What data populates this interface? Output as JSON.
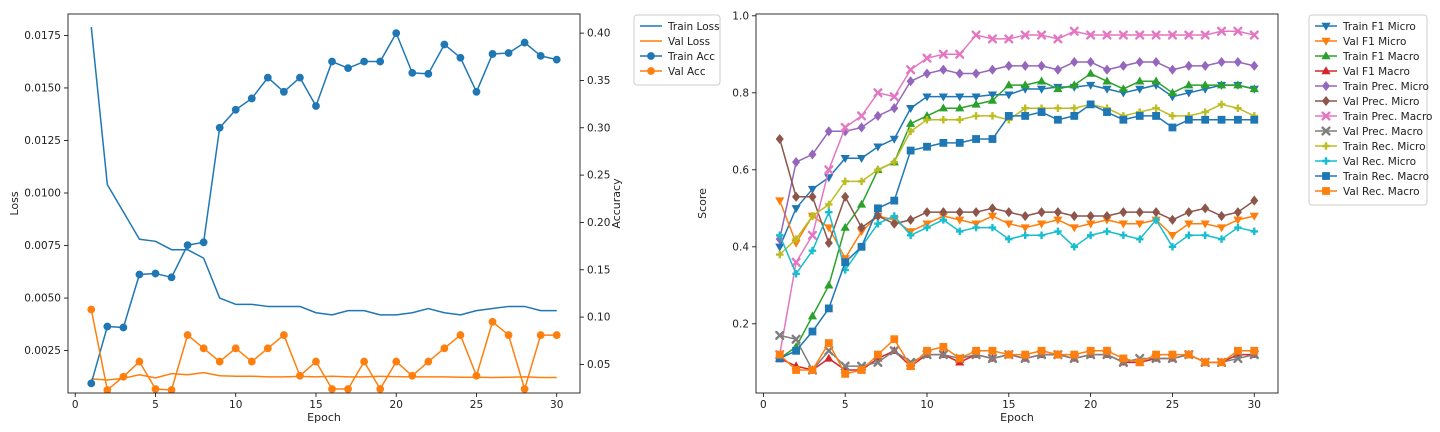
{
  "chart_data": [
    {
      "type": "line",
      "xlabel": "Epoch",
      "ylabel": "Loss",
      "y2label": "Accuracy",
      "xlim": [
        -0.45,
        31.45
      ],
      "ylim": [
        0.00048,
        0.01852
      ],
      "y2lim": [
        0.0198,
        0.4202
      ],
      "xticks": [
        0,
        5,
        10,
        15,
        20,
        25,
        30
      ],
      "yticks": [
        0.0025,
        0.005,
        0.0075,
        0.01,
        0.0125,
        0.015,
        0.0175
      ],
      "ytick_labels": [
        "0.0025",
        "0.0050",
        "0.0075",
        "0.0100",
        "0.0125",
        "0.0150",
        "0.0175"
      ],
      "y2ticks": [
        0.05,
        0.1,
        0.15,
        0.2,
        0.25,
        0.3,
        0.35,
        0.4
      ],
      "y2tick_labels": [
        "0.05",
        "0.10",
        "0.15",
        "0.20",
        "0.25",
        "0.30",
        "0.35",
        "0.40"
      ],
      "legend_position": "outside-right",
      "x": [
        1,
        2,
        3,
        4,
        5,
        6,
        7,
        8,
        9,
        10,
        11,
        12,
        13,
        14,
        15,
        16,
        17,
        18,
        19,
        20,
        21,
        22,
        23,
        24,
        25,
        26,
        27,
        28,
        29,
        30
      ],
      "series": [
        {
          "name": "Train Loss",
          "axis": "left",
          "color": "#1f77b4",
          "marker": "none",
          "values": [
            0.0179,
            0.0104,
            0.0091,
            0.0078,
            0.0077,
            0.0073,
            0.0073,
            0.0069,
            0.005,
            0.0047,
            0.0047,
            0.0046,
            0.0046,
            0.0046,
            0.0043,
            0.0042,
            0.0044,
            0.0044,
            0.0042,
            0.0042,
            0.0043,
            0.0045,
            0.0043,
            0.0042,
            0.0044,
            0.0045,
            0.0046,
            0.0046,
            0.0044,
            0.0044
          ]
        },
        {
          "name": "Val Loss",
          "axis": "left",
          "color": "#ff7f0e",
          "marker": "none",
          "values": [
            0.00115,
            0.0011,
            0.00118,
            0.00135,
            0.0012,
            0.0014,
            0.00135,
            0.00145,
            0.0013,
            0.00128,
            0.00128,
            0.00125,
            0.00125,
            0.00127,
            0.00125,
            0.00128,
            0.00125,
            0.00125,
            0.00127,
            0.00126,
            0.00125,
            0.00125,
            0.00125,
            0.00123,
            0.00123,
            0.00122,
            0.00123,
            0.00125,
            0.00122,
            0.00122
          ]
        },
        {
          "name": "Train Acc",
          "axis": "right",
          "color": "#1f77b4",
          "marker": "circle",
          "values": [
            0.03,
            0.09,
            0.089,
            0.145,
            0.146,
            0.142,
            0.176,
            0.179,
            0.3,
            0.319,
            0.331,
            0.353,
            0.338,
            0.353,
            0.323,
            0.37,
            0.363,
            0.37,
            0.37,
            0.4,
            0.358,
            0.357,
            0.388,
            0.374,
            0.338,
            0.378,
            0.379,
            0.39,
            0.376,
            0.372
          ]
        },
        {
          "name": "Val Acc",
          "axis": "right",
          "color": "#ff7f0e",
          "marker": "circle",
          "values": [
            0.108,
            0.023,
            0.037,
            0.053,
            0.024,
            0.023,
            0.081,
            0.067,
            0.053,
            0.067,
            0.053,
            0.067,
            0.081,
            0.038,
            0.053,
            0.024,
            0.024,
            0.053,
            0.024,
            0.053,
            0.038,
            0.053,
            0.067,
            0.081,
            0.038,
            0.095,
            0.081,
            0.024,
            0.081,
            0.081
          ]
        }
      ]
    },
    {
      "type": "line",
      "xlabel": "Epoch",
      "ylabel": "Score",
      "xlim": [
        -0.45,
        31.45
      ],
      "ylim": [
        0.0203,
        1.0047
      ],
      "xticks": [
        0,
        5,
        10,
        15,
        20,
        25,
        30
      ],
      "yticks": [
        0.2,
        0.4,
        0.6,
        0.8,
        1.0
      ],
      "ytick_labels": [
        "0.2",
        "0.4",
        "0.6",
        "0.8",
        "1.0"
      ],
      "legend_position": "outside-right",
      "x": [
        1,
        2,
        3,
        4,
        5,
        6,
        7,
        8,
        9,
        10,
        11,
        12,
        13,
        14,
        15,
        16,
        17,
        18,
        19,
        20,
        21,
        22,
        23,
        24,
        25,
        26,
        27,
        28,
        29,
        30
      ],
      "series": [
        {
          "name": "Train F1 Micro",
          "color": "#1f77b4",
          "marker": "tri_down",
          "values": [
            0.4,
            0.5,
            0.55,
            0.58,
            0.63,
            0.63,
            0.66,
            0.68,
            0.76,
            0.79,
            0.79,
            0.79,
            0.79,
            0.795,
            0.795,
            0.81,
            0.81,
            0.815,
            0.815,
            0.82,
            0.81,
            0.8,
            0.81,
            0.82,
            0.79,
            0.8,
            0.81,
            0.82,
            0.82,
            0.81
          ]
        },
        {
          "name": "Val F1 Micro",
          "color": "#ff7f0e",
          "marker": "tri_down",
          "values": [
            0.52,
            0.41,
            0.48,
            0.45,
            0.37,
            0.44,
            0.48,
            0.47,
            0.44,
            0.46,
            0.48,
            0.47,
            0.46,
            0.48,
            0.46,
            0.45,
            0.46,
            0.47,
            0.45,
            0.46,
            0.47,
            0.46,
            0.46,
            0.47,
            0.43,
            0.46,
            0.46,
            0.45,
            0.47,
            0.48
          ]
        },
        {
          "name": "Train F1 Macro",
          "color": "#2ca02c",
          "marker": "tri_up",
          "values": [
            0.11,
            0.14,
            0.22,
            0.3,
            0.45,
            0.51,
            0.6,
            0.62,
            0.72,
            0.74,
            0.76,
            0.76,
            0.77,
            0.78,
            0.82,
            0.82,
            0.83,
            0.81,
            0.82,
            0.85,
            0.83,
            0.81,
            0.83,
            0.83,
            0.8,
            0.82,
            0.82,
            0.82,
            0.82,
            0.81
          ]
        },
        {
          "name": "Val F1 Macro",
          "color": "#d62728",
          "marker": "tri_up",
          "values": [
            0.11,
            0.09,
            0.08,
            0.11,
            0.08,
            0.08,
            0.11,
            0.13,
            0.09,
            0.12,
            0.12,
            0.1,
            0.12,
            0.11,
            0.12,
            0.11,
            0.12,
            0.12,
            0.11,
            0.12,
            0.12,
            0.1,
            0.1,
            0.11,
            0.11,
            0.12,
            0.1,
            0.1,
            0.12,
            0.12
          ]
        },
        {
          "name": "Train Prec. Micro",
          "color": "#9467bd",
          "marker": "diamond",
          "values": [
            0.42,
            0.62,
            0.64,
            0.7,
            0.7,
            0.71,
            0.74,
            0.76,
            0.83,
            0.85,
            0.86,
            0.85,
            0.85,
            0.86,
            0.87,
            0.87,
            0.87,
            0.86,
            0.88,
            0.88,
            0.86,
            0.87,
            0.88,
            0.88,
            0.86,
            0.87,
            0.87,
            0.88,
            0.88,
            0.87
          ]
        },
        {
          "name": "Val Prec. Micro",
          "color": "#8c564b",
          "marker": "diamond",
          "values": [
            0.68,
            0.53,
            0.53,
            0.41,
            0.53,
            0.45,
            0.48,
            0.46,
            0.47,
            0.49,
            0.49,
            0.49,
            0.49,
            0.5,
            0.49,
            0.48,
            0.49,
            0.49,
            0.48,
            0.48,
            0.48,
            0.49,
            0.49,
            0.49,
            0.47,
            0.49,
            0.5,
            0.48,
            0.49,
            0.52
          ]
        },
        {
          "name": "Train Prec. Macro",
          "color": "#e377c2",
          "marker": "x",
          "values": [
            0.12,
            0.36,
            0.43,
            0.6,
            0.71,
            0.74,
            0.8,
            0.79,
            0.86,
            0.89,
            0.9,
            0.9,
            0.95,
            0.94,
            0.94,
            0.95,
            0.95,
            0.94,
            0.96,
            0.95,
            0.95,
            0.95,
            0.95,
            0.95,
            0.95,
            0.95,
            0.95,
            0.96,
            0.96,
            0.95
          ]
        },
        {
          "name": "Val Prec. Macro",
          "color": "#7f7f7f",
          "marker": "x",
          "values": [
            0.17,
            0.16,
            0.08,
            0.13,
            0.09,
            0.09,
            0.1,
            0.13,
            0.1,
            0.12,
            0.12,
            0.11,
            0.12,
            0.11,
            0.12,
            0.11,
            0.12,
            0.12,
            0.11,
            0.12,
            0.12,
            0.1,
            0.11,
            0.11,
            0.11,
            0.12,
            0.1,
            0.1,
            0.11,
            0.12
          ]
        },
        {
          "name": "Train Rec. Micro",
          "color": "#bcbd22",
          "marker": "plus",
          "values": [
            0.38,
            0.42,
            0.48,
            0.51,
            0.57,
            0.57,
            0.6,
            0.62,
            0.7,
            0.73,
            0.73,
            0.73,
            0.74,
            0.74,
            0.73,
            0.76,
            0.76,
            0.76,
            0.76,
            0.77,
            0.76,
            0.74,
            0.75,
            0.76,
            0.74,
            0.74,
            0.75,
            0.77,
            0.76,
            0.74
          ]
        },
        {
          "name": "Val Rec. Micro",
          "color": "#17becf",
          "marker": "plus",
          "values": [
            0.43,
            0.33,
            0.39,
            0.49,
            0.34,
            0.4,
            0.46,
            0.48,
            0.43,
            0.45,
            0.47,
            0.44,
            0.45,
            0.45,
            0.42,
            0.43,
            0.43,
            0.44,
            0.4,
            0.43,
            0.44,
            0.43,
            0.42,
            0.47,
            0.4,
            0.43,
            0.43,
            0.42,
            0.45,
            0.44
          ]
        },
        {
          "name": "Train Rec. Macro",
          "color": "#1f77b4",
          "marker": "square",
          "values": [
            0.11,
            0.13,
            0.18,
            0.24,
            0.36,
            0.4,
            0.5,
            0.52,
            0.65,
            0.66,
            0.67,
            0.67,
            0.68,
            0.68,
            0.74,
            0.74,
            0.75,
            0.73,
            0.74,
            0.77,
            0.75,
            0.73,
            0.74,
            0.74,
            0.71,
            0.73,
            0.73,
            0.73,
            0.73,
            0.73
          ]
        },
        {
          "name": "Val Rec. Macro",
          "color": "#ff7f0e",
          "marker": "square",
          "values": [
            0.12,
            0.08,
            0.08,
            0.15,
            0.07,
            0.08,
            0.12,
            0.16,
            0.09,
            0.13,
            0.14,
            0.11,
            0.13,
            0.13,
            0.12,
            0.12,
            0.13,
            0.12,
            0.12,
            0.13,
            0.13,
            0.11,
            0.1,
            0.12,
            0.12,
            0.12,
            0.1,
            0.1,
            0.13,
            0.13
          ]
        }
      ]
    }
  ]
}
